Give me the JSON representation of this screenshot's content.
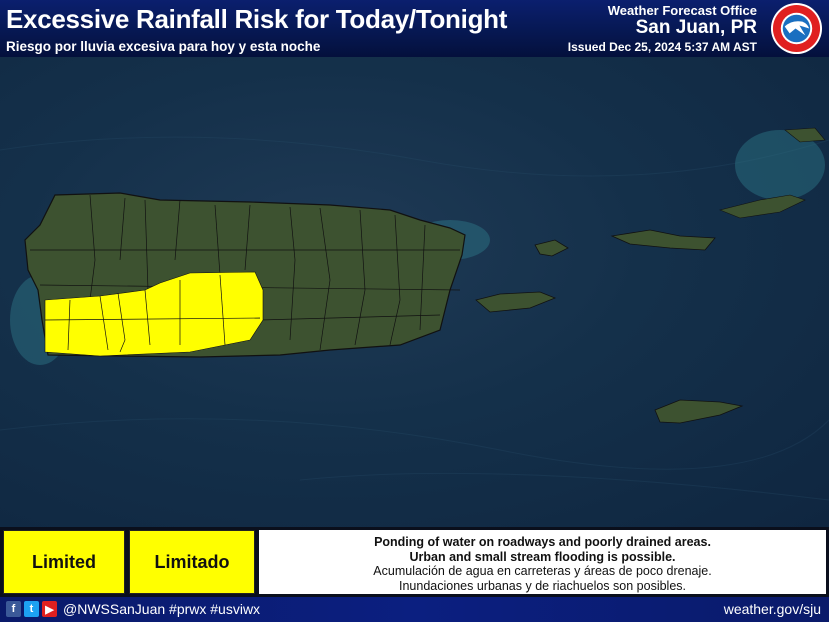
{
  "header": {
    "title": "Excessive Rainfall Risk for Today/Tonight",
    "subtitle": "Riesgo por lluvia excesiva para hoy y esta noche",
    "office_label": "Weather Forecast Office",
    "office_city": "San Juan, PR",
    "issued": "Issued Dec 25, 2024 5:37 AM AST",
    "logo_text": "NATIONAL WEATHER SERVICE"
  },
  "map": {
    "risk_color": "#ffff00",
    "risk_level": "Limited"
  },
  "legend": {
    "level_en": "Limited",
    "level_es": "Limitado",
    "desc_en_1": "Ponding of water on roadways and poorly drained areas.",
    "desc_en_2": "Urban and small stream flooding is possible.",
    "desc_es_1": "Acumulación de agua en carreteras y áreas de poco drenaje.",
    "desc_es_2": "Inundaciones urbanas y de riachuelos son posibles."
  },
  "footer": {
    "icons": [
      "facebook-icon",
      "twitter-icon",
      "youtube-icon"
    ],
    "handle": "@NWSSanJuan #prwx #usviwx",
    "website": "weather.gov/sju"
  }
}
